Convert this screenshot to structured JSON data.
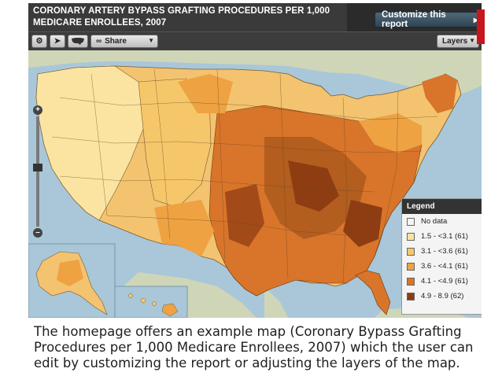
{
  "map_title": {
    "line1": "CORONARY ARTERY BYPASS GRAFTING PROCEDURES PER 1,000",
    "line2": "MEDICARE ENROLLEES, 2007"
  },
  "toolbar": {
    "customize_label": "Customize this report",
    "share_label": "Share",
    "layers_label": "Layers"
  },
  "legend": {
    "title": "Legend",
    "items": [
      {
        "label": "No data",
        "color": "#f5f5f0"
      },
      {
        "label": "1.5 - <3.1 (61)",
        "color": "#fbe4a2"
      },
      {
        "label": "3.1 - <3.6 (61)",
        "color": "#f6c76a"
      },
      {
        "label": "3.6 - <4.1 (61)",
        "color": "#eea242"
      },
      {
        "label": "4.1 - <4.9 (61)",
        "color": "#d8752a"
      },
      {
        "label": "4.9 - 8.9 (62)",
        "color": "#8e3d13"
      }
    ]
  },
  "caption": "The homepage offers an example map (Coronary Bypass Grafting Procedures per 1,000 Medicare Enrollees, 2007) which the user can edit by customizing the report or adjusting the layers of the map.",
  "colors": {
    "water": "#a9c7d8",
    "land_outside": "#cfd6b8",
    "title_bar": "#3a3a3a",
    "accent_red": "#c8161d"
  },
  "icons": [
    "gear-icon",
    "cursor-icon",
    "us-map-icon",
    "link-icon",
    "chevron-down-icon",
    "zoom-in-icon",
    "zoom-out-icon",
    "minimize-icon"
  ]
}
